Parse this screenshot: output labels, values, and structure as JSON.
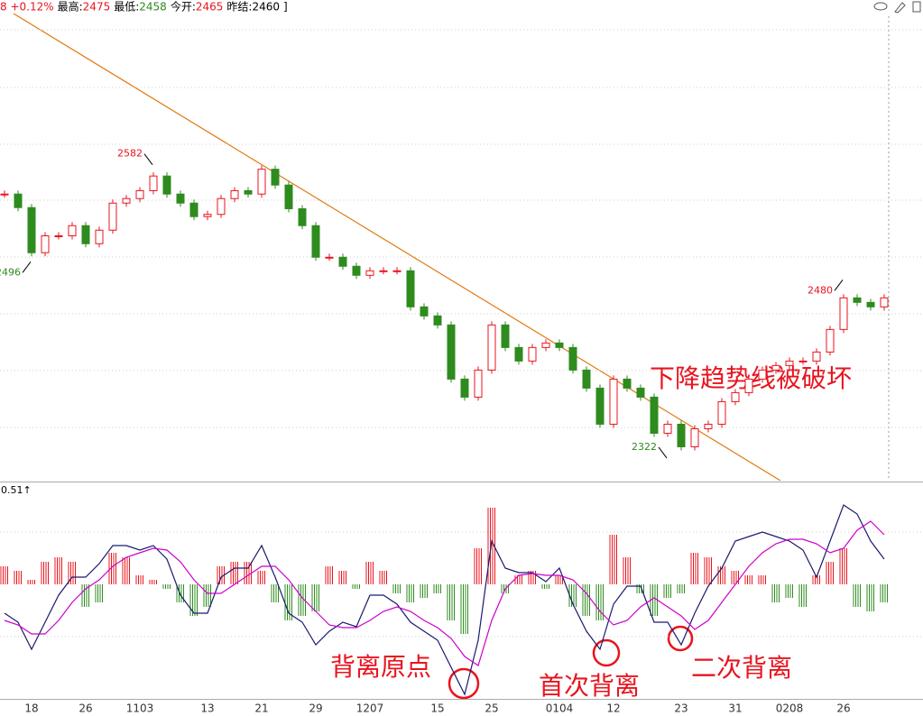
{
  "header": [
    "8 +0.12%",
    "最高:",
    "2475",
    "最低:",
    "2458",
    "今开:",
    "2465",
    "昨结:",
    "2460",
    "]"
  ],
  "annotations": {
    "trend": "下降趋势线被破坏",
    "origin": "背离原点",
    "first": "首次背离",
    "second": "二次背离"
  },
  "chart_data": [
    {
      "type": "candlestick",
      "categories": [
        null,
        null,
        "18",
        null,
        null,
        null,
        "26",
        null,
        null,
        null,
        "1103",
        null,
        null,
        null,
        null,
        "13",
        null,
        null,
        null,
        "21",
        null,
        null,
        null,
        "29",
        null,
        null,
        null,
        "1207",
        null,
        null,
        null,
        null,
        "15",
        null,
        null,
        null,
        "25",
        null,
        null,
        null,
        null,
        "0104",
        null,
        null,
        null,
        "12",
        null,
        null,
        null,
        null,
        "23",
        null,
        null,
        null,
        "31",
        null,
        null,
        null,
        "0208",
        null,
        null,
        null,
        "26",
        null,
        null,
        null
      ],
      "close": [
        2556,
        2544,
        2504,
        2519,
        2519,
        2528,
        2512,
        2524,
        2548,
        2552,
        2559,
        2572,
        2556,
        2548,
        2536,
        2538,
        2552,
        2559,
        2556,
        2578,
        2564,
        2543,
        2528,
        2500,
        2500,
        2492,
        2484,
        2488,
        2488,
        2488,
        2456,
        2448,
        2440,
        2392,
        2376,
        2400,
        2440,
        2420,
        2408,
        2420,
        2424,
        2420,
        2400,
        2384,
        2352,
        2392,
        2384,
        2376,
        2344,
        2352,
        2332,
        2348,
        2352,
        2372,
        2380,
        2392,
        2400,
        2404,
        2408,
        2408,
        2416,
        2436,
        2464,
        2460,
        2456,
        2464
      ],
      "up_color": "#e8141e",
      "down_color": "#2e8b1e",
      "ylim": [
        2302,
        2728
      ],
      "price_marks": [
        {
          "value": 2582,
          "index": 11,
          "color": "#e8141e"
        },
        {
          "value": 2496,
          "index": 2,
          "color": "#2e8b1e"
        },
        {
          "value": 2322,
          "index": 49,
          "color": "#2e8b1e"
        },
        {
          "value": 2480,
          "index": 62,
          "color": "#e8141e"
        }
      ]
    },
    {
      "type": "macd",
      "label": "0.51↑",
      "histogram": [
        20,
        15,
        5,
        25,
        30,
        25,
        -25,
        -20,
        35,
        30,
        10,
        5,
        -5,
        -20,
        -35,
        -25,
        20,
        25,
        25,
        15,
        -20,
        -40,
        -35,
        -30,
        20,
        15,
        -5,
        25,
        15,
        -10,
        -20,
        -15,
        -10,
        -40,
        -55,
        40,
        85,
        -10,
        10,
        15,
        -5,
        10,
        -25,
        -35,
        -40,
        55,
        30,
        -10,
        -35,
        -15,
        -10,
        35,
        30,
        20,
        15,
        10,
        10,
        -20,
        -15,
        -25,
        10,
        25,
        40,
        -25,
        -30,
        -20
      ],
      "series": [
        {
          "color": "#1a1a6e",
          "values": [
            -32,
            -42,
            -72,
            -42,
            -12,
            8,
            8,
            23,
            43,
            43,
            38,
            43,
            28,
            -12,
            -32,
            -32,
            8,
            18,
            18,
            43,
            8,
            -32,
            -42,
            -67,
            -52,
            -42,
            -47,
            -12,
            -12,
            -22,
            -42,
            -52,
            -62,
            -92,
            -122,
            -62,
            48,
            18,
            13,
            13,
            3,
            18,
            -22,
            -52,
            -72,
            -22,
            -2,
            -2,
            -42,
            -42,
            -67,
            -32,
            -2,
            18,
            48,
            53,
            58,
            53,
            48,
            38,
            8,
            48,
            88,
            78,
            48,
            28
          ]
        },
        {
          "color": "#cc00cc",
          "values": [
            -40,
            -45,
            -55,
            -55,
            -40,
            -20,
            -5,
            5,
            20,
            30,
            35,
            40,
            38,
            25,
            5,
            -10,
            -10,
            0,
            10,
            20,
            20,
            5,
            -15,
            -30,
            -45,
            -48,
            -48,
            -40,
            -30,
            -25,
            -30,
            -40,
            -48,
            -60,
            -80,
            -90,
            -40,
            -5,
            10,
            12,
            10,
            10,
            5,
            -10,
            -30,
            -45,
            -40,
            -25,
            -15,
            -25,
            -35,
            -50,
            -40,
            -20,
            0,
            20,
            35,
            45,
            50,
            50,
            45,
            35,
            40,
            60,
            70,
            55
          ]
        }
      ],
      "ylim": [
        -127,
        113
      ]
    }
  ]
}
